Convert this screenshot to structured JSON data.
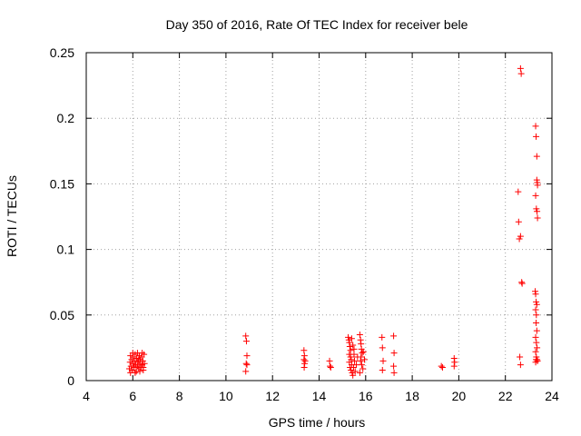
{
  "chart_data": {
    "type": "scatter",
    "title": "Day 350 of 2016, Rate Of TEC Index for receiver bele",
    "xlabel": "GPS time / hours",
    "ylabel": "ROTI / TECUs",
    "xlim": [
      4,
      24
    ],
    "ylim": [
      0,
      0.25
    ],
    "x_ticks": [
      "4",
      "6",
      "8",
      "10",
      "12",
      "14",
      "16",
      "18",
      "20",
      "22",
      "24"
    ],
    "y_ticks": [
      "0",
      "0.05",
      "0.1",
      "0.15",
      "0.2",
      "0.25"
    ],
    "grid": true,
    "marker": "+",
    "color": "#ff0000",
    "series": [
      {
        "points": [
          [
            5.85,
            0.009
          ],
          [
            5.88,
            0.014
          ],
          [
            5.9,
            0.019
          ],
          [
            5.92,
            0.011
          ],
          [
            5.95,
            0.016
          ],
          [
            5.97,
            0.008
          ],
          [
            6.0,
            0.013
          ],
          [
            6.02,
            0.018
          ],
          [
            6.05,
            0.01
          ],
          [
            6.07,
            0.015
          ],
          [
            6.1,
            0.02
          ],
          [
            6.12,
            0.012
          ],
          [
            6.15,
            0.007
          ],
          [
            6.17,
            0.017
          ],
          [
            6.2,
            0.011
          ],
          [
            6.22,
            0.014
          ],
          [
            6.25,
            0.009
          ],
          [
            6.28,
            0.019
          ],
          [
            6.3,
            0.013
          ],
          [
            6.32,
            0.016
          ],
          [
            6.35,
            0.01
          ],
          [
            6.38,
            0.018
          ],
          [
            6.4,
            0.012
          ],
          [
            6.43,
            0.015
          ],
          [
            6.45,
            0.008
          ],
          [
            6.48,
            0.02
          ],
          [
            6.5,
            0.013
          ],
          [
            5.9,
            0.006
          ],
          [
            6.0,
            0.021
          ],
          [
            6.1,
            0.006
          ],
          [
            6.2,
            0.021
          ],
          [
            6.3,
            0.007
          ],
          [
            6.4,
            0.021
          ],
          [
            6.05,
            0.011
          ],
          [
            6.25,
            0.016
          ],
          [
            6.45,
            0.01
          ],
          [
            10.85,
            0.034
          ],
          [
            10.88,
            0.03
          ],
          [
            10.9,
            0.019
          ],
          [
            10.87,
            0.013
          ],
          [
            10.9,
            0.012
          ],
          [
            10.85,
            0.007
          ],
          [
            13.35,
            0.023
          ],
          [
            13.37,
            0.019
          ],
          [
            13.35,
            0.016
          ],
          [
            13.38,
            0.013
          ],
          [
            13.36,
            0.01
          ],
          [
            13.4,
            0.015
          ],
          [
            14.45,
            0.015
          ],
          [
            14.47,
            0.011
          ],
          [
            14.5,
            0.01
          ],
          [
            15.25,
            0.033
          ],
          [
            15.28,
            0.031
          ],
          [
            15.3,
            0.029
          ],
          [
            15.32,
            0.026
          ],
          [
            15.35,
            0.023
          ],
          [
            15.3,
            0.02
          ],
          [
            15.35,
            0.018
          ],
          [
            15.38,
            0.016
          ],
          [
            15.3,
            0.014
          ],
          [
            15.4,
            0.012
          ],
          [
            15.33,
            0.01
          ],
          [
            15.37,
            0.008
          ],
          [
            15.42,
            0.006
          ],
          [
            15.45,
            0.004
          ],
          [
            15.5,
            0.02
          ],
          [
            15.52,
            0.015
          ],
          [
            15.48,
            0.01
          ],
          [
            15.55,
            0.007
          ],
          [
            15.6,
            0.012
          ],
          [
            15.65,
            0.018
          ],
          [
            15.4,
            0.032
          ],
          [
            15.45,
            0.027
          ],
          [
            15.5,
            0.024
          ],
          [
            15.75,
            0.035
          ],
          [
            15.78,
            0.031
          ],
          [
            15.8,
            0.028
          ],
          [
            15.82,
            0.024
          ],
          [
            15.85,
            0.021
          ],
          [
            15.8,
            0.018
          ],
          [
            15.78,
            0.015
          ],
          [
            15.83,
            0.012
          ],
          [
            15.88,
            0.009
          ],
          [
            15.75,
            0.006
          ],
          [
            15.9,
            0.022
          ],
          [
            15.95,
            0.016
          ],
          [
            16.7,
            0.033
          ],
          [
            16.72,
            0.025
          ],
          [
            16.75,
            0.015
          ],
          [
            16.72,
            0.008
          ],
          [
            17.2,
            0.034
          ],
          [
            17.22,
            0.021
          ],
          [
            17.2,
            0.011
          ],
          [
            17.22,
            0.006
          ],
          [
            19.25,
            0.011
          ],
          [
            19.3,
            0.01
          ],
          [
            19.8,
            0.017
          ],
          [
            19.82,
            0.014
          ],
          [
            19.8,
            0.011
          ],
          [
            22.55,
            0.144
          ],
          [
            22.57,
            0.121
          ],
          [
            22.6,
            0.108
          ],
          [
            22.65,
            0.11
          ],
          [
            22.7,
            0.075
          ],
          [
            22.72,
            0.074
          ],
          [
            22.62,
            0.018
          ],
          [
            22.65,
            0.012
          ],
          [
            22.65,
            0.238
          ],
          [
            22.68,
            0.234
          ],
          [
            23.3,
            0.194
          ],
          [
            23.32,
            0.186
          ],
          [
            23.35,
            0.171
          ],
          [
            23.35,
            0.153
          ],
          [
            23.37,
            0.151
          ],
          [
            23.38,
            0.149
          ],
          [
            23.3,
            0.141
          ],
          [
            23.33,
            0.131
          ],
          [
            23.36,
            0.129
          ],
          [
            23.38,
            0.124
          ],
          [
            23.28,
            0.068
          ],
          [
            23.3,
            0.066
          ],
          [
            23.32,
            0.06
          ],
          [
            23.35,
            0.058
          ],
          [
            23.3,
            0.054
          ],
          [
            23.33,
            0.05
          ],
          [
            23.32,
            0.044
          ],
          [
            23.35,
            0.038
          ],
          [
            23.3,
            0.033
          ],
          [
            23.33,
            0.029
          ],
          [
            23.36,
            0.025
          ],
          [
            23.3,
            0.022
          ],
          [
            23.33,
            0.018
          ],
          [
            23.36,
            0.016
          ],
          [
            23.38,
            0.015
          ],
          [
            23.3,
            0.014
          ],
          [
            23.32,
            0.016
          ]
        ]
      }
    ]
  }
}
